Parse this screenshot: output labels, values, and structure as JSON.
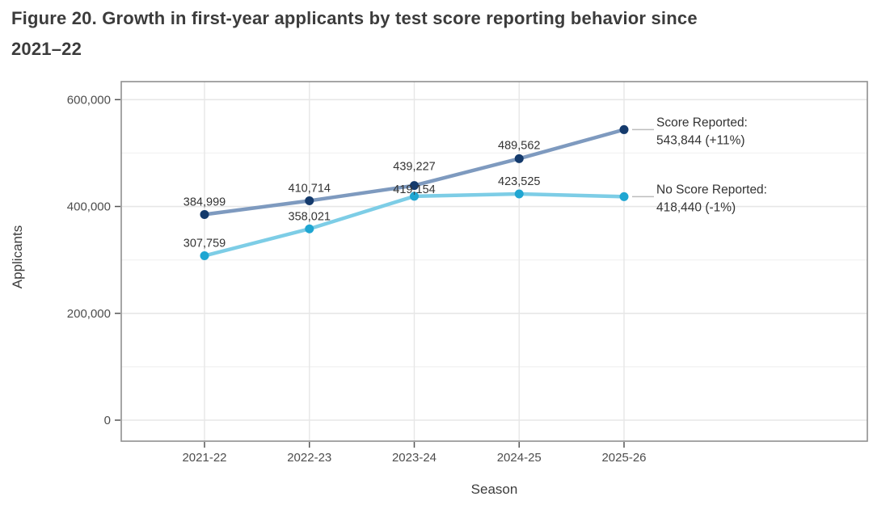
{
  "figure": {
    "title_lines": [
      "Figure 20. Growth in first-year applicants by test score reporting behavior since",
      "2021–22"
    ]
  },
  "chart_data": {
    "type": "line",
    "title": "Figure 20. Growth in first-year applicants by test score reporting behavior since 2021–22",
    "xlabel": "Season",
    "ylabel": "Applicants",
    "categories": [
      "2021-22",
      "2022-23",
      "2023-24",
      "2024-25",
      "2025-26"
    ],
    "ylim": [
      0,
      600000
    ],
    "y_ticks": [
      0,
      200000,
      400000,
      600000
    ],
    "y_tick_labels": [
      "0",
      "200,000",
      "400,000",
      "600,000"
    ],
    "y_minor_ticks": [
      100000,
      300000,
      500000
    ],
    "grid": "on",
    "legend_position": "end-of-line annotations, right side",
    "series": [
      {
        "name": "Score Reported",
        "values": [
          384999,
          410714,
          439227,
          489562,
          543844
        ],
        "point_labels": [
          "384,999",
          "410,714",
          "439,227",
          "489,562"
        ],
        "annotation_lines": [
          "Score Reported:",
          "543,844 (+11%)"
        ],
        "line_color": "#7E9ABF",
        "point_color": "#143A6C"
      },
      {
        "name": "No Score Reported",
        "values": [
          307759,
          358021,
          419154,
          423525,
          418440
        ],
        "point_labels": [
          "307,759",
          "358,021",
          "419,154",
          "423,525"
        ],
        "annotation_lines": [
          "No Score Reported:",
          "418,440 (-1%)"
        ],
        "line_color": "#7DCDE6",
        "point_color": "#1FA6D2"
      }
    ]
  },
  "colors": {
    "background": "#FFFFFF",
    "title_text": "#3C3C3C",
    "axis_text": "#4D4D4D",
    "axis_title_text": "#3C3C3C",
    "data_label_text": "#333333",
    "annotation_text": "#333333",
    "grid_major": "#E7E7E7",
    "grid_minor": "#F3F3F3",
    "panel_border": "#8F8F8F",
    "tick_mark": "#555555",
    "connector": "#BDBDBD"
  }
}
